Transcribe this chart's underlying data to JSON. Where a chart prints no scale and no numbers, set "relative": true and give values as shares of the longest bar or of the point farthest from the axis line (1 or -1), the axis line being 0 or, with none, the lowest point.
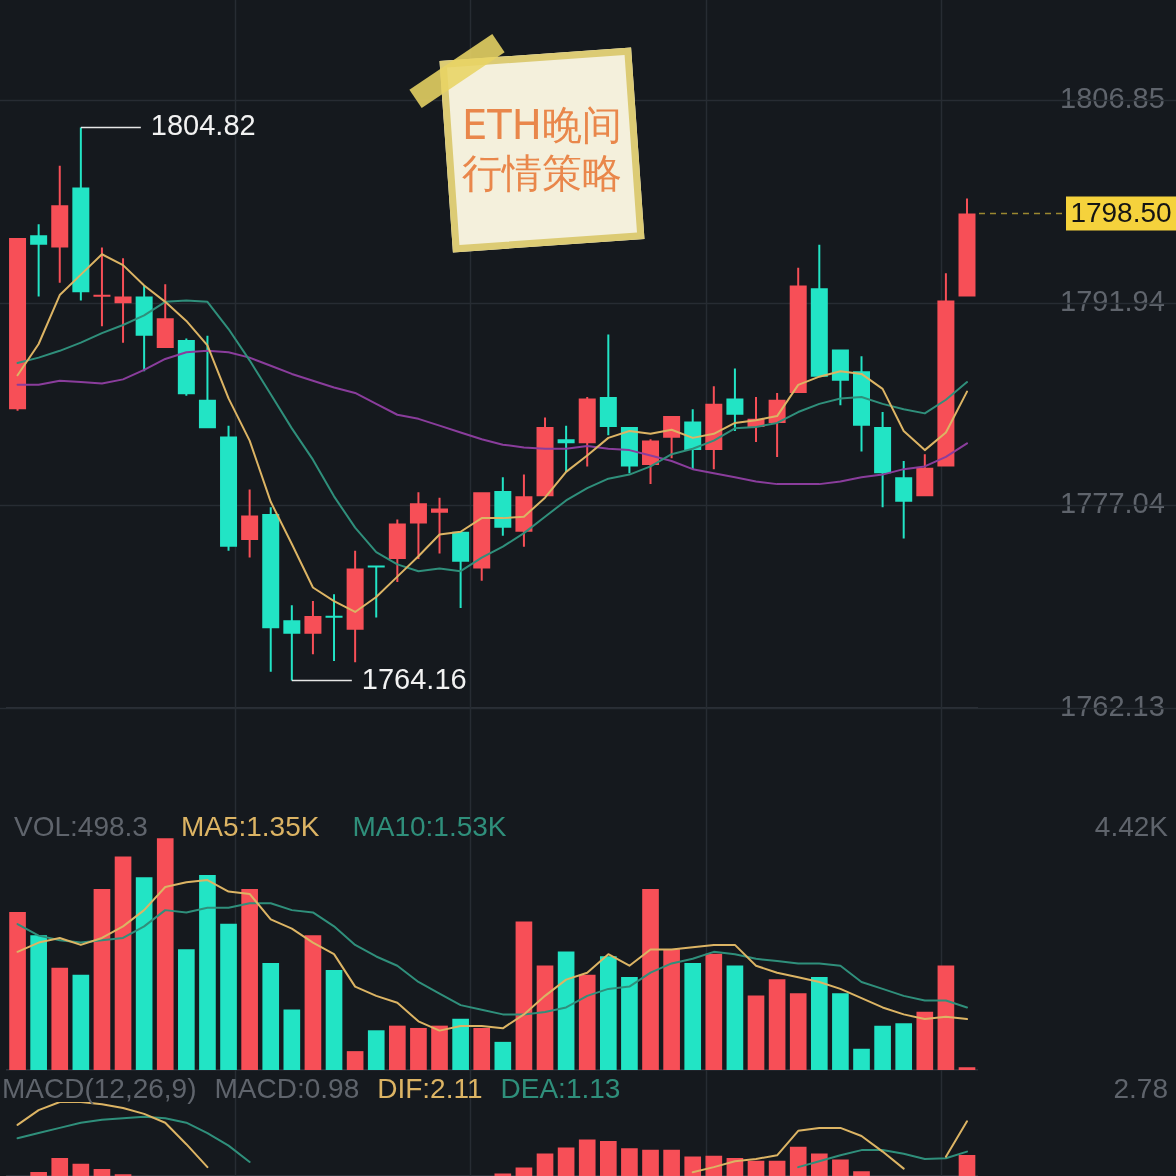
{
  "chart_data": [
    {
      "type": "candlestick",
      "title": "ETH晚间行情策略",
      "categories": [
        null,
        null,
        null,
        null,
        null,
        null,
        null,
        null,
        null,
        null,
        null,
        null,
        null,
        null,
        null,
        null,
        null,
        null,
        null,
        null,
        null,
        null,
        null,
        null,
        null,
        null,
        null,
        null,
        null,
        null,
        null,
        null,
        null,
        null,
        null,
        null,
        null,
        null,
        null,
        null,
        null,
        null,
        null,
        null,
        null,
        null
      ],
      "ohlc": [
        [
          1784.1,
          1796.7,
          1784.0,
          1796.7
        ],
        [
          1796.9,
          1797.7,
          1792.4,
          1796.2
        ],
        [
          1796.0,
          1802.0,
          1793.4,
          1799.1
        ],
        [
          1800.4,
          1804.82,
          1792.1,
          1792.7
        ],
        [
          1792.4,
          1796.0,
          1790.2,
          1792.5
        ],
        [
          1791.9,
          1795.2,
          1789.0,
          1792.4
        ],
        [
          1792.4,
          1793.2,
          1786.9,
          1789.5
        ],
        [
          1788.6,
          1793.3,
          1788.6,
          1790.8
        ],
        [
          1789.2,
          1789.3,
          1785.1,
          1785.2
        ],
        [
          1784.8,
          1789.5,
          1782.7,
          1782.7
        ],
        [
          1782.1,
          1782.9,
          1773.7,
          1774.0
        ],
        [
          1774.5,
          1778.2,
          1773.2,
          1776.3
        ],
        [
          1776.4,
          1776.9,
          1764.8,
          1768.0
        ],
        [
          1768.6,
          1769.7,
          1764.16,
          1767.6
        ],
        [
          1767.6,
          1770.0,
          1766.1,
          1768.9
        ],
        [
          1768.9,
          1770.5,
          1765.6,
          1768.8
        ],
        [
          1767.9,
          1773.7,
          1765.5,
          1772.4
        ],
        [
          1772.6,
          1772.6,
          1768.8,
          1772.5
        ],
        [
          1773.1,
          1776.0,
          1771.4,
          1775.7
        ],
        [
          1775.7,
          1778.0,
          1773.1,
          1777.2
        ],
        [
          1776.5,
          1777.6,
          1773.5,
          1776.8
        ],
        [
          1775.1,
          1775.1,
          1769.5,
          1772.9
        ],
        [
          1772.4,
          1778.0,
          1771.5,
          1778.0
        ],
        [
          1778.1,
          1779.1,
          1774.8,
          1775.4
        ],
        [
          1775.1,
          1779.3,
          1774.0,
          1777.7
        ],
        [
          1777.7,
          1783.5,
          1777.7,
          1782.8
        ],
        [
          1781.9,
          1782.9,
          1779.5,
          1781.6
        ],
        [
          1781.6,
          1785.0,
          1779.9,
          1784.9
        ],
        [
          1785.0,
          1789.6,
          1782.2,
          1782.8
        ],
        [
          1782.8,
          1782.8,
          1779.4,
          1779.9
        ],
        [
          1780.0,
          1781.9,
          1778.6,
          1781.8
        ],
        [
          1782.0,
          1783.6,
          1780.5,
          1783.6
        ],
        [
          1783.2,
          1784.1,
          1779.7,
          1781.1
        ],
        [
          1781.1,
          1785.8,
          1779.7,
          1784.5
        ],
        [
          1784.9,
          1787.1,
          1782.5,
          1783.7
        ],
        [
          1782.8,
          1785.0,
          1781.7,
          1783.4
        ],
        [
          1783.1,
          1785.3,
          1780.6,
          1784.8
        ],
        [
          1785.3,
          1794.5,
          1785.3,
          1793.2
        ],
        [
          1793.0,
          1796.2,
          1786.5,
          1786.5
        ],
        [
          1788.5,
          1788.5,
          1784.4,
          1786.2
        ],
        [
          1786.9,
          1788.0,
          1781.0,
          1782.9
        ],
        [
          1782.8,
          1783.9,
          1776.9,
          1779.4
        ],
        [
          1779.1,
          1780.3,
          1774.6,
          1777.3
        ],
        [
          1777.7,
          1780.8,
          1777.7,
          1779.8
        ],
        [
          1779.9,
          1794.1,
          1779.9,
          1792.1
        ],
        [
          1792.4,
          1799.6,
          1792.4,
          1798.5
        ]
      ],
      "colors": [
        "#f74f57",
        "#22e4c5",
        "#f74f57",
        "#22e4c5",
        "#f74f57",
        "#f74f57",
        "#22e4c5",
        "#f74f57",
        "#22e4c5",
        "#22e4c5",
        "#22e4c5",
        "#f74f57",
        "#22e4c5",
        "#22e4c5",
        "#f74f57",
        "#22e4c5",
        "#f74f57",
        "#22e4c5",
        "#f74f57",
        "#f74f57",
        "#f74f57",
        "#22e4c5",
        "#f74f57",
        "#22e4c5",
        "#f74f57",
        "#f74f57",
        "#22e4c5",
        "#f74f57",
        "#22e4c5",
        "#22e4c5",
        "#f74f57",
        "#f74f57",
        "#22e4c5",
        "#f74f57",
        "#22e4c5",
        "#f74f57",
        "#f74f57",
        "#f74f57",
        "#22e4c5",
        "#22e4c5",
        "#22e4c5",
        "#22e4c5",
        "#22e4c5",
        "#f74f57",
        "#f74f57",
        "#f74f57"
      ],
      "series": [
        {
          "type": "line",
          "color": "#dcb464",
          "values": [
            1786.6,
            1788.9,
            1792.5,
            1794.0,
            1795.5,
            1794.7,
            1793.2,
            1792.0,
            1790.6,
            1788.8,
            1784.9,
            1781.8,
            1777.3,
            1774.2,
            1771.0,
            1770.0,
            1769.2,
            1770.3,
            1771.8,
            1773.3,
            1774.9,
            1775.1,
            1776.1,
            1776.1,
            1776.2,
            1777.6,
            1779.5,
            1780.7,
            1782.0,
            1782.5,
            1782.3,
            1782.6,
            1782.0,
            1782.3,
            1783.1,
            1783.3,
            1783.6,
            1785.9,
            1786.5,
            1786.9,
            1786.7,
            1785.6,
            1782.5,
            1781.1,
            1782.4,
            1785.4
          ]
        },
        {
          "type": "line",
          "color": "#2f8f7b",
          "values": [
            1787.5,
            1787.9,
            1788.4,
            1789.0,
            1789.7,
            1790.3,
            1791.0,
            1792.0,
            1792.1,
            1792.0,
            1790.0,
            1787.7,
            1785.2,
            1782.7,
            1780.4,
            1777.7,
            1775.4,
            1773.6,
            1772.7,
            1772.2,
            1772.4,
            1772.2,
            1773.2,
            1774.0,
            1775.0,
            1776.2,
            1777.4,
            1778.3,
            1779.0,
            1779.3,
            1779.9,
            1780.8,
            1781.2,
            1781.8,
            1782.7,
            1782.8,
            1783.1,
            1783.9,
            1784.5,
            1784.9,
            1785.0,
            1784.5,
            1784.1,
            1783.8,
            1784.8,
            1786.1
          ]
        },
        {
          "type": "line",
          "color": "#8a3d9c",
          "values": [
            1785.9,
            1785.9,
            1786.2,
            1786.1,
            1786.0,
            1786.3,
            1787.0,
            1787.8,
            1788.3,
            1788.4,
            1788.3,
            1787.9,
            1787.3,
            1786.7,
            1786.2,
            1785.7,
            1785.3,
            1784.5,
            1783.7,
            1783.4,
            1782.9,
            1782.4,
            1781.9,
            1781.5,
            1781.3,
            1781.2,
            1781.2,
            1781.4,
            1781.2,
            1781.1,
            1780.7,
            1780.3,
            1779.7,
            1779.4,
            1779.1,
            1778.8,
            1778.6,
            1778.6,
            1778.6,
            1778.8,
            1779.1,
            1779.3,
            1779.7,
            1779.9,
            1780.6,
            1781.6
          ]
        }
      ],
      "ylim": [
        1762.13,
        1806.85
      ],
      "yticks": [
        1762.13,
        1777.04,
        1791.94,
        1806.85
      ],
      "grid": "y",
      "legend": false,
      "tick_labels": "y",
      "marker": "none",
      "annotations": [
        "1804.82",
        "1764.16"
      ],
      "ref_lines": [
        {
          "axis": "y",
          "value": 1798.5,
          "label": "1798.50",
          "color": "#f5d23c",
          "line_style": "dashed"
        }
      ]
    },
    {
      "type": "bar",
      "relative": true,
      "categories": [
        null,
        null,
        null,
        null,
        null,
        null,
        null,
        null,
        null,
        null,
        null,
        null,
        null,
        null,
        null,
        null,
        null,
        null,
        null,
        null,
        null,
        null,
        null,
        null,
        null,
        null,
        null,
        null,
        null,
        null,
        null,
        null,
        null,
        null,
        null,
        null,
        null,
        null,
        null,
        null,
        null,
        null,
        null,
        null,
        null,
        null
      ],
      "series": [
        {
          "type": "bar",
          "colors": [
            "#f74f57",
            "#22e4c5",
            "#f74f57",
            "#22e4c5",
            "#f74f57",
            "#f74f57",
            "#22e4c5",
            "#f74f57",
            "#22e4c5",
            "#22e4c5",
            "#22e4c5",
            "#f74f57",
            "#22e4c5",
            "#22e4c5",
            "#f74f57",
            "#22e4c5",
            "#f74f57",
            "#22e4c5",
            "#f74f57",
            "#f74f57",
            "#f74f57",
            "#22e4c5",
            "#f74f57",
            "#22e4c5",
            "#f74f57",
            "#f74f57",
            "#22e4c5",
            "#f74f57",
            "#22e4c5",
            "#22e4c5",
            "#f74f57",
            "#f74f57",
            "#22e4c5",
            "#f74f57",
            "#22e4c5",
            "#f74f57",
            "#f74f57",
            "#f74f57",
            "#22e4c5",
            "#22e4c5",
            "#22e4c5",
            "#22e4c5",
            "#22e4c5",
            "#f74f57",
            "#f74f57",
            "#f74f57"
          ],
          "values": [
            0.68,
            0.58,
            0.44,
            0.41,
            0.78,
            0.92,
            0.83,
            1,
            0.52,
            0.84,
            0.63,
            0.78,
            0.46,
            0.26,
            0.58,
            0.43,
            0.08,
            0.17,
            0.19,
            0.18,
            0.19,
            0.22,
            0.18,
            0.12,
            0.64,
            0.45,
            0.51,
            0.41,
            0.49,
            0.4,
            0.78,
            0.52,
            0.46,
            0.5,
            0.45,
            0.32,
            0.39,
            0.33,
            0.4,
            0.33,
            0.09,
            0.19,
            0.2,
            0.25,
            0.45,
            0.01
          ]
        },
        {
          "type": "line",
          "name": "MA5:1.35K",
          "color": "#dcb464",
          "values": [
            0.51,
            0.55,
            0.57,
            0.54,
            0.57,
            0.62,
            0.69,
            0.79,
            0.81,
            0.82,
            0.77,
            0.76,
            0.65,
            0.61,
            0.55,
            0.5,
            0.36,
            0.32,
            0.29,
            0.21,
            0.17,
            0.19,
            0.19,
            0.18,
            0.24,
            0.32,
            0.39,
            0.42,
            0.5,
            0.45,
            0.52,
            0.52,
            0.53,
            0.54,
            0.54,
            0.45,
            0.42,
            0.4,
            0.38,
            0.35,
            0.31,
            0.27,
            0.24,
            0.22,
            0.23,
            0.22
          ]
        },
        {
          "type": "line",
          "name": "MA10:1.53K",
          "color": "#2f8f7b",
          "values": [
            0.63,
            0.58,
            0.56,
            0.55,
            0.56,
            0.57,
            0.62,
            0.69,
            0.68,
            0.7,
            0.7,
            0.72,
            0.72,
            0.69,
            0.68,
            0.62,
            0.54,
            0.49,
            0.45,
            0.38,
            0.33,
            0.28,
            0.26,
            0.24,
            0.24,
            0.25,
            0.27,
            0.32,
            0.35,
            0.36,
            0.42,
            0.46,
            0.48,
            0.51,
            0.5,
            0.48,
            0.47,
            0.46,
            0.46,
            0.45,
            0.38,
            0.35,
            0.32,
            0.3,
            0.3,
            0.27
          ]
        }
      ],
      "legend": false,
      "tick_labels": false,
      "marker": "none",
      "annotations": [
        "VOL:498.3",
        "4.42K"
      ]
    },
    {
      "type": "bar",
      "relative": true,
      "categories": [
        null,
        null,
        null,
        null,
        null,
        null,
        null,
        null,
        null,
        null,
        null,
        null,
        null,
        null,
        null,
        null,
        null,
        null,
        null,
        null,
        null,
        null,
        null,
        null,
        null,
        null,
        null,
        null,
        null,
        null,
        null,
        null,
        null,
        null,
        null,
        null,
        null,
        null,
        null,
        null,
        null,
        null,
        null,
        null,
        null,
        null
      ],
      "series": [
        {
          "type": "bar",
          "color": "#f74f57",
          "values": [
            null,
            0.05,
            0.24,
            0.16,
            0.09,
            0.02,
            null,
            null,
            null,
            null,
            null,
            null,
            null,
            null,
            null,
            null,
            null,
            null,
            null,
            null,
            null,
            null,
            null,
            0.03,
            0.11,
            0.3,
            0.38,
            0.49,
            0.47,
            0.37,
            0.35,
            0.35,
            0.26,
            0.27,
            0.24,
            0.2,
            0.2,
            0.39,
            0.3,
            0.22,
            0.06,
            null,
            null,
            null,
            null,
            0.28
          ]
        },
        {
          "type": "line",
          "name": "DIF:2.11",
          "color": "#dcb464",
          "values": [
            0.69,
            0.89,
            1,
            1,
            0.97,
            0.92,
            0.84,
            0.72,
            0.43,
            0.12,
            null,
            null,
            null,
            null,
            null,
            null,
            null,
            null,
            null,
            null,
            null,
            null,
            null,
            null,
            null,
            null,
            null,
            null,
            null,
            null,
            null,
            null,
            0.05,
            0.12,
            0.2,
            0.23,
            0.28,
            0.61,
            0.65,
            0.65,
            0.54,
            0.33,
            0.1,
            null,
            0.26,
            0.74
          ]
        },
        {
          "type": "line",
          "name": "DEA:1.13",
          "color": "#2f8f7b",
          "values": [
            0.51,
            0.58,
            0.65,
            0.72,
            0.76,
            0.78,
            0.8,
            0.78,
            0.72,
            0.58,
            0.41,
            0.19,
            null,
            null,
            null,
            null,
            null,
            null,
            null,
            null,
            null,
            null,
            null,
            null,
            null,
            null,
            null,
            null,
            null,
            null,
            null,
            null,
            null,
            null,
            null,
            null,
            null,
            0.12,
            0.2,
            0.28,
            0.35,
            0.35,
            0.3,
            0.23,
            0.24,
            0.33
          ]
        }
      ],
      "legend": false,
      "tick_labels": false,
      "marker": "none",
      "annotations": [
        "MACD(12,26,9)",
        "MACD:0.98",
        "2.78"
      ]
    }
  ]
}
